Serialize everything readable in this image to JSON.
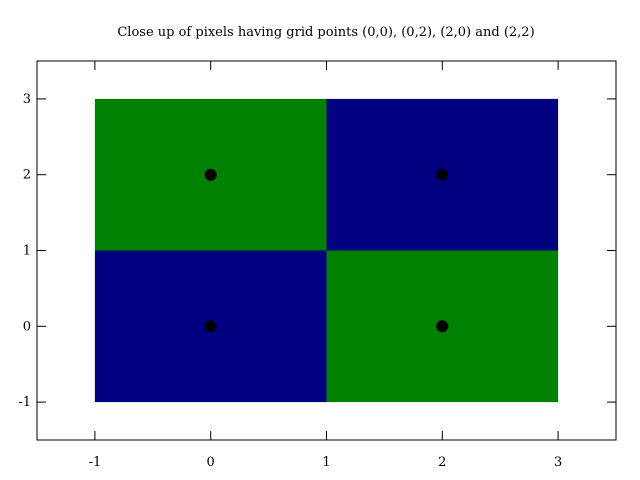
{
  "chart_data": {
    "type": "heatmap",
    "title": "Close up of pixels having grid points (0,0), (0,2), (2,0) and (2,2)",
    "xlabel": "",
    "ylabel": "",
    "xlim": [
      -1.5,
      3.5
    ],
    "ylim": [
      -1.5,
      3.5
    ],
    "x_ticks": [
      "-1",
      "0",
      "1",
      "2",
      "3"
    ],
    "y_ticks": [
      "-1",
      "0",
      "1",
      "2",
      "3"
    ],
    "grid": false,
    "cells": [
      {
        "x": [
          -1,
          1
        ],
        "y": [
          1,
          3
        ],
        "color": "#008000"
      },
      {
        "x": [
          1,
          3
        ],
        "y": [
          1,
          3
        ],
        "color": "#000080"
      },
      {
        "x": [
          -1,
          1
        ],
        "y": [
          -1,
          1
        ],
        "color": "#000080"
      },
      {
        "x": [
          1,
          3
        ],
        "y": [
          -1,
          1
        ],
        "color": "#008000"
      }
    ],
    "points": [
      {
        "x": 0,
        "y": 0
      },
      {
        "x": 0,
        "y": 2
      },
      {
        "x": 2,
        "y": 0
      },
      {
        "x": 2,
        "y": 2
      }
    ],
    "point_color": "#000000"
  }
}
